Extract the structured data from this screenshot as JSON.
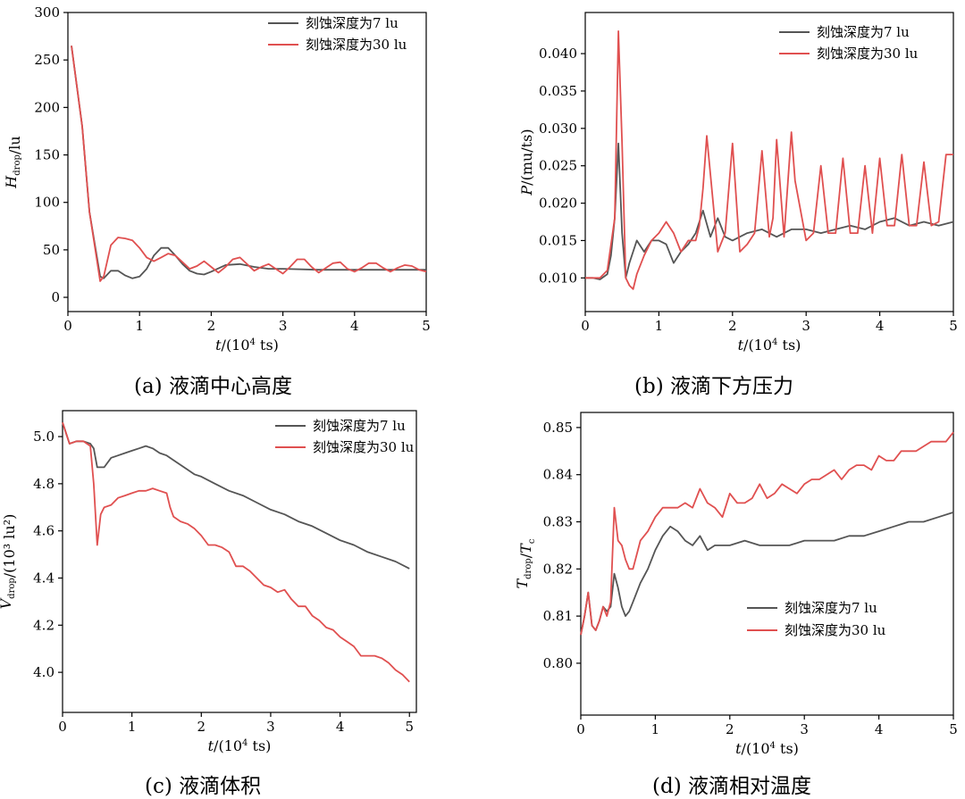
{
  "colors": {
    "series_a": "#555555",
    "series_b": "#e05050",
    "axis": "#000000"
  },
  "captions": {
    "a": "(a) 液滴中心高度",
    "b": "(b) 液滴下方压力",
    "c": "(c) 液滴体积",
    "d": "(d) 液滴相对温度"
  },
  "chart_data": [
    {
      "id": "a",
      "type": "line",
      "ylabel": {
        "main": "H",
        "sub": "drop",
        "unit": "/lu"
      },
      "xlabel": {
        "main": "t",
        "unit": "/(10",
        "sup": "4",
        "tail": " ts)"
      },
      "xlim": [
        0,
        5
      ],
      "ylim": [
        -15,
        300
      ],
      "xticks": [
        "0",
        "1",
        "2",
        "3",
        "4",
        "5"
      ],
      "yticks": [
        "0",
        "50",
        "100",
        "150",
        "200",
        "250",
        "300"
      ],
      "legend_position": "top-right",
      "series": [
        {
          "name": "刻蚀深度为7 lu",
          "x": [
            0.05,
            0.2,
            0.3,
            0.45,
            0.5,
            0.6,
            0.7,
            0.8,
            0.9,
            1.0,
            1.1,
            1.2,
            1.3,
            1.4,
            1.5,
            1.6,
            1.7,
            1.8,
            1.9,
            2.0,
            2.2,
            2.4,
            2.6,
            2.8,
            3.0,
            3.5,
            4.0,
            4.5,
            5.0
          ],
          "y": [
            265,
            180,
            90,
            22,
            20,
            28,
            28,
            23,
            20,
            22,
            30,
            44,
            52,
            52,
            44,
            35,
            28,
            25,
            24,
            27,
            34,
            35,
            32,
            30,
            30,
            29,
            29,
            29,
            29
          ]
        },
        {
          "name": "刻蚀深度为30 lu",
          "x": [
            0.05,
            0.2,
            0.3,
            0.45,
            0.5,
            0.6,
            0.7,
            0.8,
            0.9,
            1.0,
            1.1,
            1.2,
            1.3,
            1.4,
            1.5,
            1.6,
            1.7,
            1.8,
            1.9,
            2.0,
            2.1,
            2.2,
            2.3,
            2.4,
            2.5,
            2.6,
            2.7,
            2.8,
            2.9,
            3.0,
            3.1,
            3.2,
            3.3,
            3.4,
            3.5,
            3.6,
            3.7,
            3.8,
            3.9,
            4.0,
            4.1,
            4.2,
            4.3,
            4.4,
            4.5,
            4.6,
            4.7,
            4.8,
            4.9,
            5.0
          ],
          "y": [
            265,
            180,
            90,
            17,
            22,
            55,
            63,
            62,
            60,
            52,
            42,
            38,
            42,
            46,
            44,
            37,
            30,
            33,
            38,
            32,
            26,
            32,
            40,
            42,
            35,
            28,
            32,
            35,
            30,
            25,
            32,
            40,
            40,
            32,
            26,
            31,
            36,
            37,
            30,
            27,
            31,
            36,
            36,
            31,
            27,
            31,
            34,
            33,
            29,
            27
          ]
        }
      ]
    },
    {
      "id": "b",
      "type": "line",
      "ylabel": {
        "main": "P",
        "sub": "",
        "unit": "/(mu/ts)"
      },
      "xlabel": {
        "main": "t",
        "unit": "/(10",
        "sup": "4",
        "tail": " ts)"
      },
      "xlim": [
        0,
        5
      ],
      "ylim": [
        0.0055,
        0.0455
      ],
      "xticks": [
        "0",
        "1",
        "2",
        "3",
        "4",
        "5"
      ],
      "yticks": [
        "0.010",
        "0.015",
        "0.020",
        "0.025",
        "0.030",
        "0.035",
        "0.040"
      ],
      "legend_position": "top-right",
      "series": [
        {
          "name": "刻蚀深度为7 lu",
          "x": [
            0.0,
            0.1,
            0.2,
            0.3,
            0.35,
            0.4,
            0.45,
            0.5,
            0.55,
            0.6,
            0.7,
            0.8,
            0.9,
            1.0,
            1.1,
            1.2,
            1.3,
            1.4,
            1.5,
            1.6,
            1.7,
            1.8,
            1.9,
            2.0,
            2.2,
            2.4,
            2.6,
            2.8,
            3.0,
            3.2,
            3.4,
            3.6,
            3.8,
            4.0,
            4.2,
            4.4,
            4.6,
            4.8,
            5.0
          ],
          "y": [
            0.01,
            0.01,
            0.0098,
            0.0105,
            0.013,
            0.018,
            0.028,
            0.016,
            0.01,
            0.012,
            0.015,
            0.0135,
            0.015,
            0.015,
            0.0145,
            0.012,
            0.0135,
            0.0145,
            0.016,
            0.019,
            0.0155,
            0.018,
            0.0155,
            0.015,
            0.016,
            0.0165,
            0.0155,
            0.0165,
            0.0165,
            0.016,
            0.0165,
            0.017,
            0.0165,
            0.0175,
            0.018,
            0.017,
            0.0175,
            0.017,
            0.0175
          ]
        },
        {
          "name": "刻蚀深度为30 lu",
          "x": [
            0.0,
            0.1,
            0.2,
            0.3,
            0.4,
            0.45,
            0.5,
            0.55,
            0.6,
            0.65,
            0.7,
            0.8,
            0.9,
            1.0,
            1.1,
            1.2,
            1.3,
            1.4,
            1.5,
            1.55,
            1.6,
            1.65,
            1.8,
            1.9,
            2.0,
            2.1,
            2.2,
            2.3,
            2.4,
            2.5,
            2.55,
            2.6,
            2.7,
            2.8,
            2.85,
            3.0,
            3.1,
            3.2,
            3.3,
            3.4,
            3.5,
            3.6,
            3.7,
            3.8,
            3.9,
            4.0,
            4.1,
            4.2,
            4.3,
            4.4,
            4.5,
            4.6,
            4.7,
            4.8,
            4.9,
            5.0
          ],
          "y": [
            0.01,
            0.01,
            0.01,
            0.011,
            0.018,
            0.043,
            0.028,
            0.01,
            0.009,
            0.0085,
            0.0105,
            0.013,
            0.015,
            0.016,
            0.0175,
            0.016,
            0.0135,
            0.015,
            0.015,
            0.017,
            0.022,
            0.029,
            0.0135,
            0.016,
            0.028,
            0.0135,
            0.0145,
            0.016,
            0.027,
            0.0155,
            0.018,
            0.0285,
            0.0155,
            0.0295,
            0.023,
            0.015,
            0.016,
            0.025,
            0.016,
            0.016,
            0.026,
            0.016,
            0.016,
            0.025,
            0.016,
            0.026,
            0.017,
            0.017,
            0.0265,
            0.017,
            0.017,
            0.0255,
            0.017,
            0.0175,
            0.0265,
            0.0265
          ]
        }
      ]
    },
    {
      "id": "c",
      "type": "line",
      "ylabel": {
        "main": "V",
        "sub": "drop",
        "unit": "/(10³ lu²)"
      },
      "xlabel": {
        "main": "t",
        "unit": "/(10",
        "sup": "4",
        "tail": " ts)"
      },
      "xlim": [
        0,
        5.1
      ],
      "ylim": [
        3.83,
        5.11
      ],
      "xticks": [
        "0",
        "1",
        "2",
        "3",
        "4",
        "5"
      ],
      "yticks": [
        "4.0",
        "4.2",
        "4.4",
        "4.6",
        "4.8",
        "5.0"
      ],
      "legend_position": "top-right",
      "series": [
        {
          "name": "刻蚀深度为7 lu",
          "x": [
            0.0,
            0.1,
            0.2,
            0.3,
            0.4,
            0.45,
            0.5,
            0.6,
            0.7,
            0.8,
            0.9,
            1.0,
            1.1,
            1.2,
            1.3,
            1.4,
            1.5,
            1.6,
            1.7,
            1.8,
            1.9,
            2.0,
            2.2,
            2.4,
            2.6,
            2.8,
            3.0,
            3.2,
            3.4,
            3.6,
            3.8,
            4.0,
            4.2,
            4.4,
            4.6,
            4.8,
            5.0
          ],
          "y": [
            5.06,
            4.97,
            4.98,
            4.98,
            4.97,
            4.95,
            4.87,
            4.87,
            4.91,
            4.92,
            4.93,
            4.94,
            4.95,
            4.96,
            4.95,
            4.93,
            4.92,
            4.9,
            4.88,
            4.86,
            4.84,
            4.83,
            4.8,
            4.77,
            4.75,
            4.72,
            4.69,
            4.67,
            4.64,
            4.62,
            4.59,
            4.56,
            4.54,
            4.51,
            4.49,
            4.47,
            4.44
          ]
        },
        {
          "name": "刻蚀深度为30 lu",
          "x": [
            0.0,
            0.1,
            0.2,
            0.3,
            0.4,
            0.45,
            0.5,
            0.55,
            0.6,
            0.7,
            0.8,
            0.9,
            1.0,
            1.1,
            1.2,
            1.3,
            1.4,
            1.5,
            1.55,
            1.6,
            1.7,
            1.8,
            1.9,
            2.0,
            2.1,
            2.2,
            2.3,
            2.4,
            2.5,
            2.6,
            2.7,
            2.8,
            2.9,
            3.0,
            3.1,
            3.2,
            3.3,
            3.4,
            3.5,
            3.6,
            3.7,
            3.8,
            3.9,
            4.0,
            4.1,
            4.2,
            4.3,
            4.4,
            4.5,
            4.6,
            4.7,
            4.8,
            4.9,
            5.0
          ],
          "y": [
            5.06,
            4.97,
            4.98,
            4.98,
            4.96,
            4.8,
            4.54,
            4.67,
            4.7,
            4.71,
            4.74,
            4.75,
            4.76,
            4.77,
            4.77,
            4.78,
            4.77,
            4.76,
            4.7,
            4.66,
            4.64,
            4.63,
            4.61,
            4.58,
            4.54,
            4.54,
            4.53,
            4.51,
            4.45,
            4.45,
            4.43,
            4.4,
            4.37,
            4.36,
            4.34,
            4.35,
            4.31,
            4.28,
            4.28,
            4.24,
            4.22,
            4.19,
            4.18,
            4.15,
            4.13,
            4.11,
            4.07,
            4.07,
            4.07,
            4.06,
            4.04,
            4.01,
            3.99,
            3.96
          ]
        }
      ]
    },
    {
      "id": "d",
      "type": "line",
      "ylabel": {
        "main": "T",
        "sub": "drop",
        "unit": "/",
        "main2": "T",
        "sub2": "c"
      },
      "xlabel": {
        "main": "t",
        "unit": "/(10",
        "sup": "4",
        "tail": " ts)"
      },
      "xlim": [
        0,
        5
      ],
      "ylim": [
        0.789,
        0.8532
      ],
      "xticks": [
        "0",
        "1",
        "2",
        "3",
        "4",
        "5"
      ],
      "yticks": [
        "0.80",
        "0.81",
        "0.82",
        "0.83",
        "0.84",
        "0.85"
      ],
      "legend_position": "center-right",
      "series": [
        {
          "name": "刻蚀深度为7 lu",
          "x": [
            0.0,
            0.05,
            0.1,
            0.15,
            0.2,
            0.25,
            0.3,
            0.35,
            0.4,
            0.45,
            0.5,
            0.55,
            0.6,
            0.65,
            0.7,
            0.8,
            0.9,
            1.0,
            1.1,
            1.2,
            1.3,
            1.4,
            1.5,
            1.6,
            1.7,
            1.8,
            2.0,
            2.2,
            2.4,
            2.6,
            2.8,
            3.0,
            3.2,
            3.4,
            3.6,
            3.8,
            4.0,
            4.2,
            4.4,
            4.6,
            4.8,
            5.0
          ],
          "y": [
            0.806,
            0.81,
            0.815,
            0.808,
            0.807,
            0.809,
            0.812,
            0.811,
            0.812,
            0.819,
            0.816,
            0.812,
            0.81,
            0.811,
            0.813,
            0.817,
            0.82,
            0.824,
            0.827,
            0.829,
            0.828,
            0.826,
            0.825,
            0.827,
            0.824,
            0.825,
            0.825,
            0.826,
            0.825,
            0.825,
            0.825,
            0.826,
            0.826,
            0.826,
            0.827,
            0.827,
            0.828,
            0.829,
            0.83,
            0.83,
            0.831,
            0.832
          ]
        },
        {
          "name": "刻蚀深度为30 lu",
          "x": [
            0.0,
            0.05,
            0.1,
            0.15,
            0.2,
            0.25,
            0.3,
            0.35,
            0.4,
            0.45,
            0.5,
            0.55,
            0.6,
            0.65,
            0.7,
            0.8,
            0.9,
            1.0,
            1.1,
            1.2,
            1.3,
            1.4,
            1.5,
            1.6,
            1.7,
            1.8,
            1.9,
            2.0,
            2.1,
            2.2,
            2.3,
            2.4,
            2.5,
            2.6,
            2.7,
            2.8,
            2.9,
            3.0,
            3.1,
            3.2,
            3.3,
            3.4,
            3.5,
            3.6,
            3.7,
            3.8,
            3.9,
            4.0,
            4.1,
            4.2,
            4.3,
            4.4,
            4.5,
            4.6,
            4.7,
            4.8,
            4.9,
            5.0
          ],
          "y": [
            0.806,
            0.81,
            0.815,
            0.808,
            0.807,
            0.809,
            0.812,
            0.81,
            0.813,
            0.833,
            0.826,
            0.825,
            0.822,
            0.82,
            0.82,
            0.826,
            0.828,
            0.831,
            0.833,
            0.833,
            0.833,
            0.834,
            0.833,
            0.837,
            0.834,
            0.833,
            0.831,
            0.836,
            0.834,
            0.834,
            0.835,
            0.838,
            0.835,
            0.836,
            0.838,
            0.837,
            0.836,
            0.838,
            0.839,
            0.839,
            0.84,
            0.841,
            0.839,
            0.841,
            0.842,
            0.842,
            0.841,
            0.844,
            0.843,
            0.843,
            0.845,
            0.845,
            0.845,
            0.846,
            0.847,
            0.847,
            0.847,
            0.849
          ]
        }
      ]
    }
  ]
}
